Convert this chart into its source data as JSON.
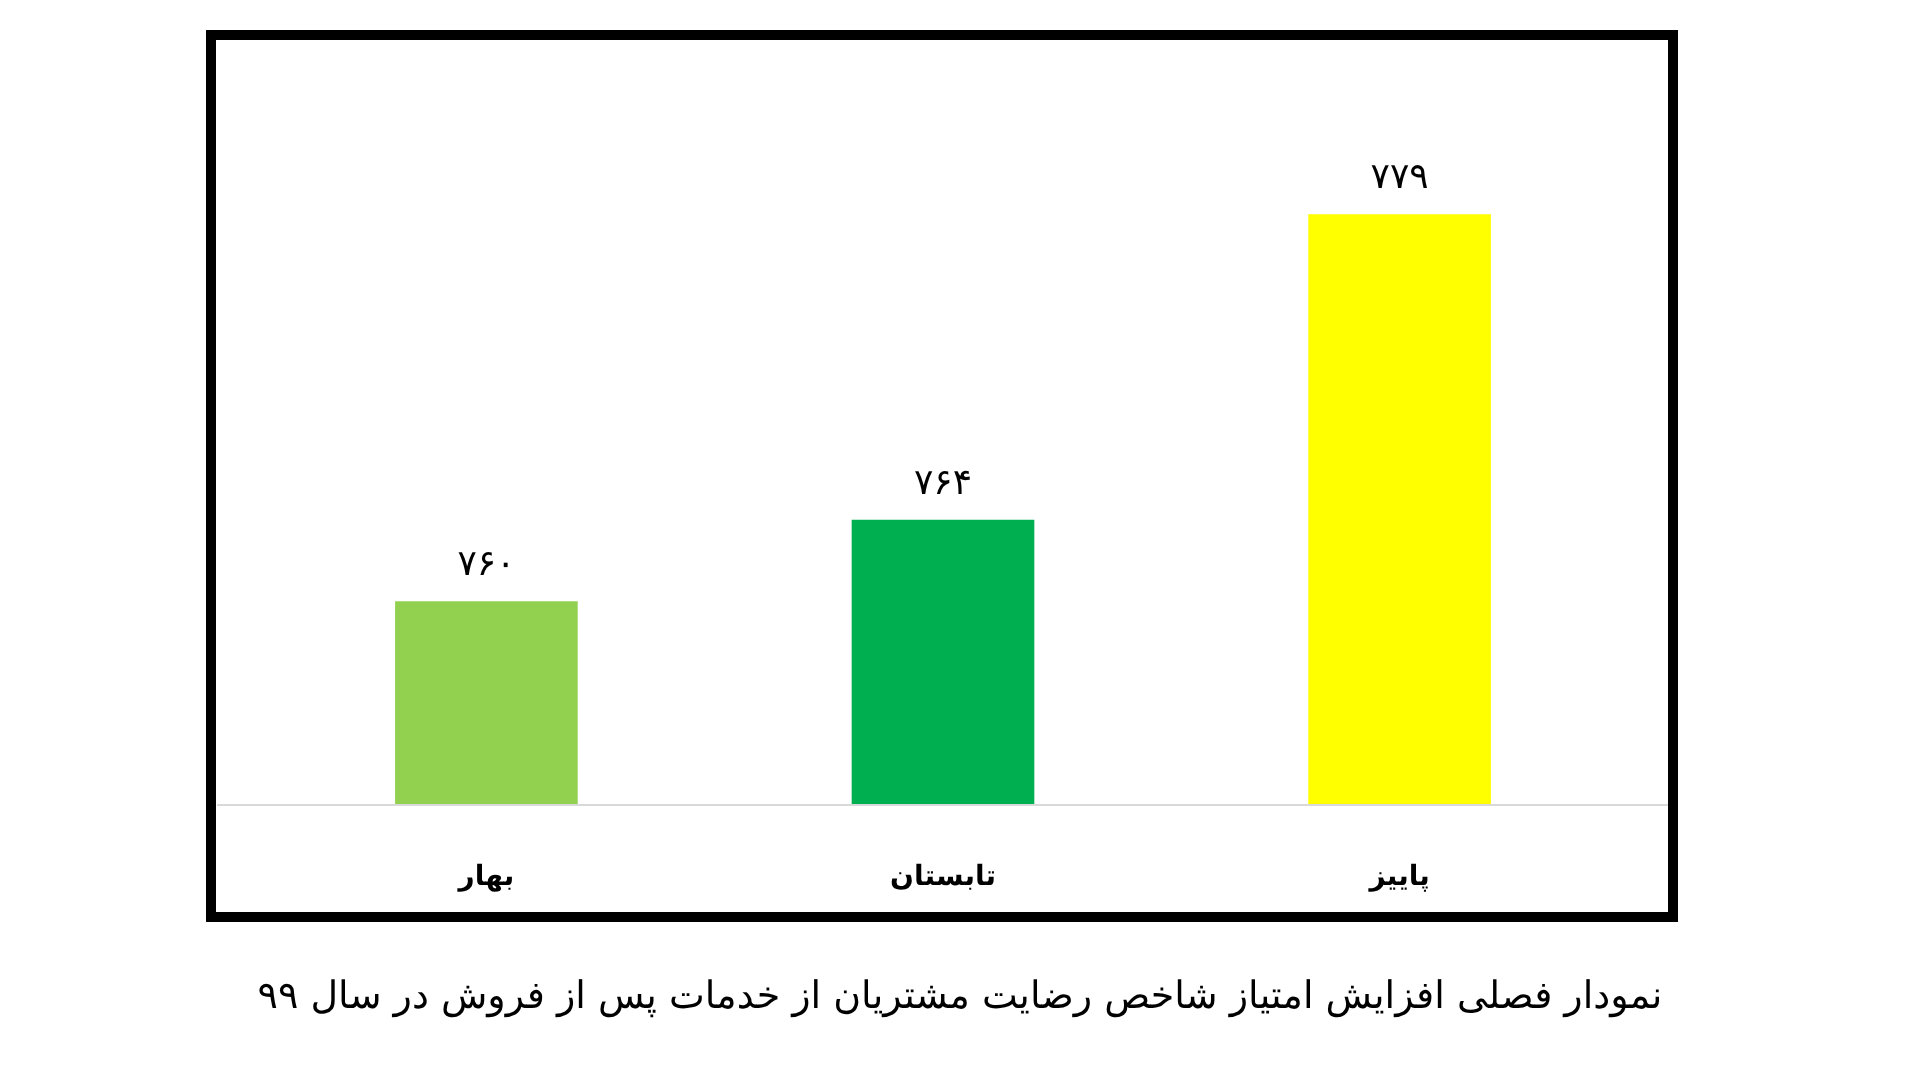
{
  "chart_data": {
    "type": "bar",
    "title": "نمودار فصلی افزایش امتیاز شاخص رضایت مشتریان از خدمات پس از فروش در سال ۹۹",
    "categories": [
      "بهار",
      "تابستان",
      "پاییز"
    ],
    "values": [
      760,
      764,
      779
    ],
    "colors": [
      "#92d050",
      "#00b050",
      "#ffff00"
    ],
    "value_labels": [
      "۷۶۰",
      "۷۶۴",
      "۷۷۹"
    ],
    "ylim": [
      750,
      788
    ]
  }
}
